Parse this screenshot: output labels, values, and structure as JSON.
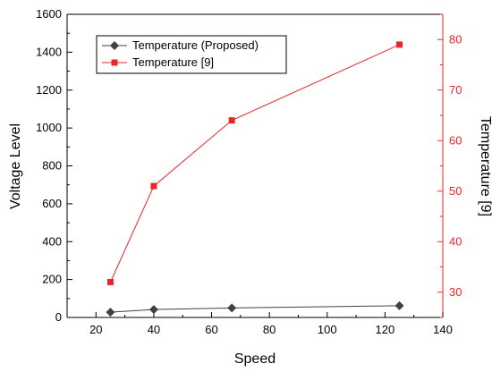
{
  "chart_data": {
    "type": "line",
    "title": "",
    "xlabel": "Speed",
    "ylabel_left": "Voltage Level",
    "ylabel_right": "Temperature [9]",
    "xlim": [
      10,
      140
    ],
    "ylim_left": [
      0,
      1600
    ],
    "ylim_right": [
      25,
      85
    ],
    "x_ticks": [
      20,
      40,
      60,
      80,
      100,
      120,
      140
    ],
    "y_ticks_left": [
      0,
      200,
      400,
      600,
      800,
      1000,
      1200,
      1400,
      1600
    ],
    "y_ticks_right": [
      30,
      40,
      50,
      60,
      70,
      80
    ],
    "grid": false,
    "legend_position": "top-left",
    "series": [
      {
        "name": "Temperature (Proposed)",
        "axis": "left",
        "color": "#404040",
        "marker": "diamond",
        "x": [
          25,
          40,
          67,
          125
        ],
        "y": [
          28,
          42,
          50,
          62
        ]
      },
      {
        "name": "Temperature [9]",
        "axis": "right",
        "color": "#e8262a",
        "marker": "square",
        "x": [
          25,
          40,
          67,
          125
        ],
        "y": [
          32,
          51,
          64,
          79
        ]
      }
    ]
  }
}
